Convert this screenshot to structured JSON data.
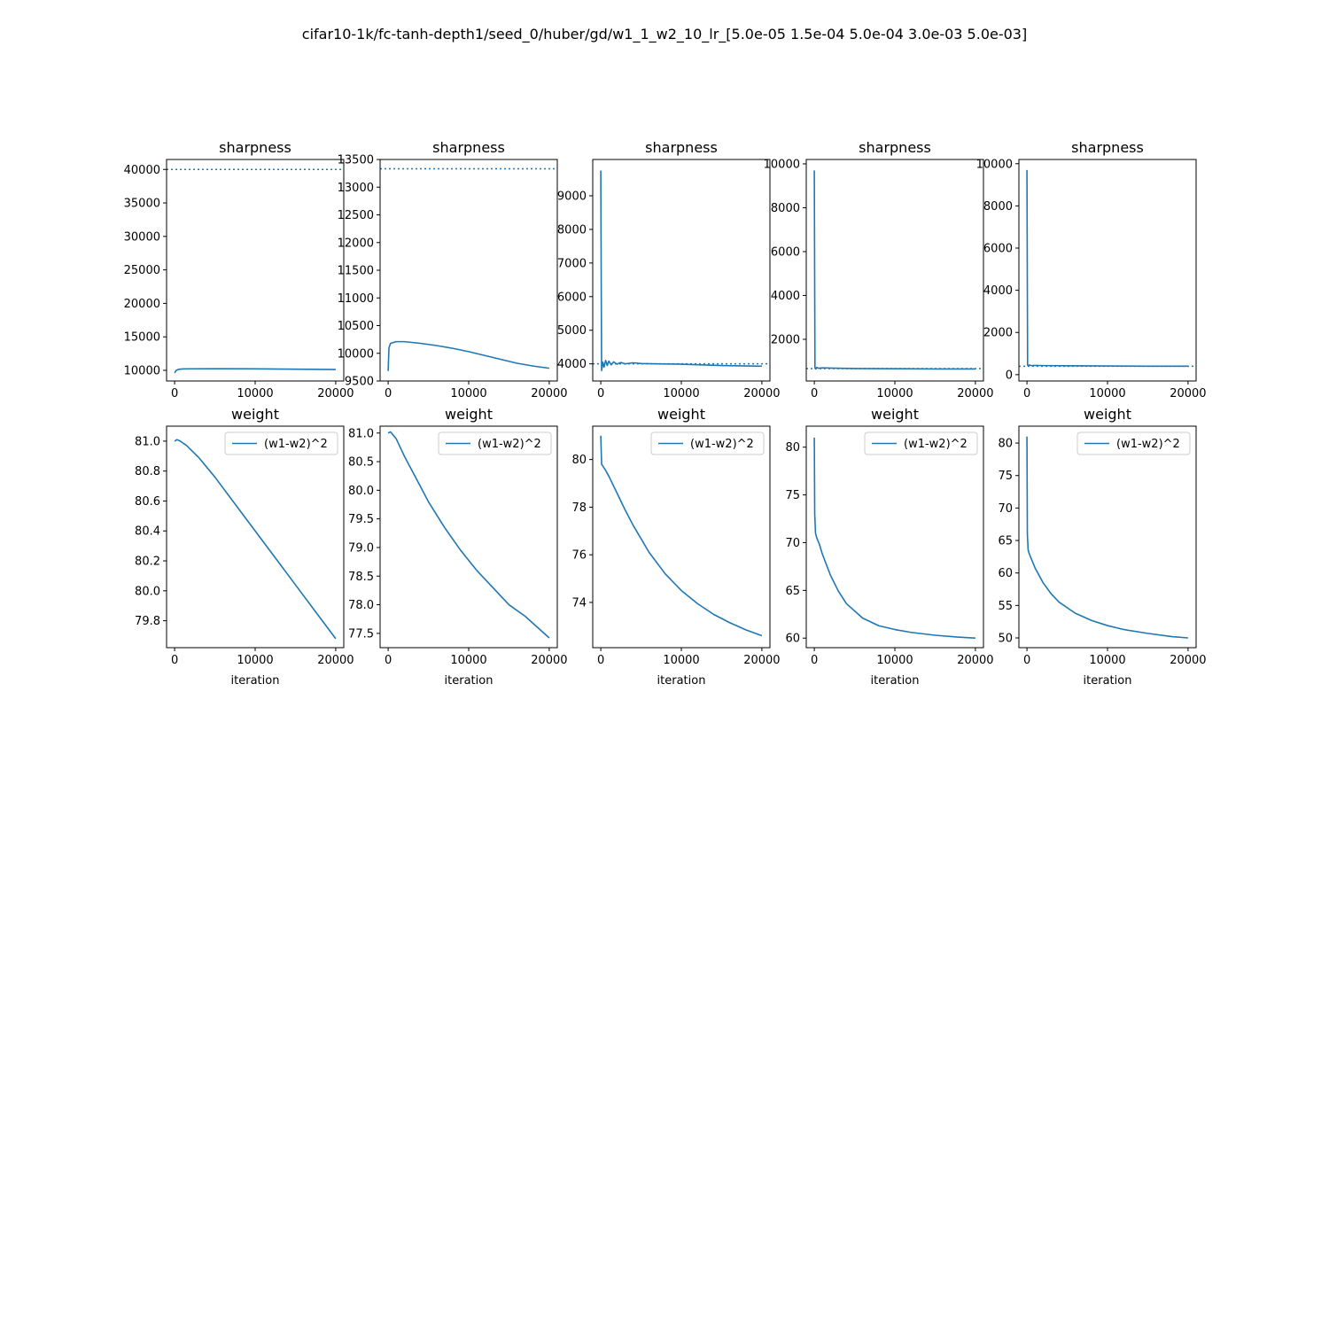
{
  "suptitle": "cifar10-1k/fc-tanh-depth1/seed_0/huber/gd/w1_1_w2_10_lr_[5.0e-05 1.5e-04 5.0e-04 3.0e-03 5.0e-03]",
  "colors": {
    "line": "#1f77b4",
    "axes": "#000000",
    "background": "#ffffff"
  },
  "chart_data": [
    {
      "type": "line",
      "title": "sharpness",
      "xlabel": "",
      "ylabel": "",
      "xlim": [
        -1000,
        21000
      ],
      "ylim": [
        8410,
        41490
      ],
      "xticks": [
        0,
        10000,
        20000
      ],
      "xtick_labels": [
        "0",
        "10000",
        "20000"
      ],
      "yticks": [
        10000,
        15000,
        20000,
        25000,
        30000,
        35000,
        40000
      ],
      "ytick_labels": [
        "10000",
        "15000",
        "20000",
        "25000",
        "30000",
        "35000",
        "40000"
      ],
      "hline": 40000,
      "grid": false,
      "series": [
        {
          "x": [
            0,
            200,
            500,
            1000,
            2000,
            5000,
            10000,
            15000,
            20000
          ],
          "y": [
            9600,
            10000,
            10150,
            10200,
            10230,
            10240,
            10220,
            10170,
            10120
          ]
        }
      ]
    },
    {
      "type": "line",
      "title": "sharpness",
      "xlabel": "",
      "ylabel": "",
      "xlim": [
        -1000,
        21000
      ],
      "ylim": [
        9500,
        13500
      ],
      "xticks": [
        0,
        10000,
        20000
      ],
      "xtick_labels": [
        "0",
        "10000",
        "20000"
      ],
      "yticks": [
        9500,
        10000,
        10500,
        11000,
        11500,
        12000,
        12500,
        13000,
        13500
      ],
      "ytick_labels": [
        "9500",
        "10000",
        "10500",
        "11000",
        "11500",
        "12000",
        "12500",
        "13000",
        "13500"
      ],
      "hline": 13333,
      "grid": false,
      "series": [
        {
          "x": [
            0,
            100,
            300,
            1000,
            2000,
            4000,
            6000,
            8000,
            10000,
            12000,
            14000,
            16000,
            18000,
            20000
          ],
          "y": [
            9680,
            10100,
            10180,
            10210,
            10210,
            10180,
            10140,
            10090,
            10030,
            9960,
            9890,
            9820,
            9770,
            9730
          ]
        }
      ]
    },
    {
      "type": "line",
      "title": "sharpness",
      "xlabel": "",
      "ylabel": "",
      "xlim": [
        -1000,
        21000
      ],
      "ylim": [
        3490,
        10080
      ],
      "xticks": [
        0,
        10000,
        20000
      ],
      "xtick_labels": [
        "0",
        "10000",
        "20000"
      ],
      "yticks": [
        4000,
        5000,
        6000,
        7000,
        8000,
        9000
      ],
      "ytick_labels": [
        "4000",
        "5000",
        "6000",
        "7000",
        "8000",
        "9000"
      ],
      "hline": 4000,
      "grid": false,
      "series": [
        {
          "x": [
            0,
            100,
            250,
            400,
            600,
            800,
            1000,
            1300,
            1600,
            2000,
            2500,
            3000,
            4000,
            5000,
            7000,
            10000,
            15000,
            20000
          ],
          "y": [
            9750,
            3800,
            4050,
            3900,
            4100,
            3950,
            4080,
            3970,
            4060,
            3990,
            4040,
            4000,
            4030,
            4010,
            4000,
            3990,
            3950,
            3930
          ]
        }
      ]
    },
    {
      "type": "line",
      "title": "sharpness",
      "xlabel": "",
      "ylabel": "",
      "xlim": [
        -1000,
        21000
      ],
      "ylim": [
        100,
        10200
      ],
      "xticks": [
        0,
        10000,
        20000
      ],
      "xtick_labels": [
        "0",
        "10000",
        "20000"
      ],
      "yticks": [
        2000,
        4000,
        6000,
        8000,
        10000
      ],
      "ytick_labels": [
        "2000",
        "4000",
        "6000",
        "8000",
        "10000"
      ],
      "hline": 667,
      "grid": false,
      "series": [
        {
          "x": [
            0,
            80,
            150,
            300,
            500,
            1000,
            2000,
            5000,
            10000,
            15000,
            20000
          ],
          "y": [
            9700,
            700,
            650,
            720,
            680,
            700,
            690,
            670,
            660,
            650,
            650
          ]
        }
      ]
    },
    {
      "type": "line",
      "title": "sharpness",
      "xlabel": "",
      "ylabel": "",
      "xlim": [
        -1000,
        21000
      ],
      "ylim": [
        -300,
        10200
      ],
      "xticks": [
        0,
        10000,
        20000
      ],
      "xtick_labels": [
        "0",
        "10000",
        "20000"
      ],
      "yticks": [
        0,
        2000,
        4000,
        6000,
        8000,
        10000
      ],
      "ytick_labels": [
        "0",
        "2000",
        "4000",
        "6000",
        "8000",
        "10000"
      ],
      "hline": 400,
      "grid": false,
      "series": [
        {
          "x": [
            0,
            80,
            150,
            300,
            500,
            1000,
            2000,
            5000,
            10000,
            15000,
            20000
          ],
          "y": [
            9700,
            450,
            420,
            460,
            430,
            440,
            430,
            420,
            410,
            400,
            400
          ]
        }
      ]
    },
    {
      "type": "line",
      "title": "weight",
      "xlabel": "iteration",
      "ylabel": "",
      "xlim": [
        -1000,
        21000
      ],
      "ylim": [
        79.62,
        81.1
      ],
      "xticks": [
        0,
        10000,
        20000
      ],
      "xtick_labels": [
        "0",
        "10000",
        "20000"
      ],
      "yticks": [
        79.8,
        80.0,
        80.2,
        80.4,
        80.6,
        80.8,
        81.0
      ],
      "ytick_labels": [
        "79.8",
        "80.0",
        "80.2",
        "80.4",
        "80.6",
        "80.8",
        "81.0"
      ],
      "legend": [
        "(w1-w2)^2"
      ],
      "legend_loc": "upper right",
      "grid": false,
      "series": [
        {
          "name": "(w1-w2)^2",
          "x": [
            0,
            300,
            700,
            1500,
            3000,
            5000,
            7500,
            10000,
            12500,
            15000,
            17500,
            20000
          ],
          "y": [
            81.0,
            81.01,
            81.0,
            80.97,
            80.89,
            80.76,
            80.58,
            80.4,
            80.22,
            80.04,
            79.86,
            79.68
          ]
        }
      ]
    },
    {
      "type": "line",
      "title": "weight",
      "xlabel": "iteration",
      "ylabel": "",
      "xlim": [
        -1000,
        21000
      ],
      "ylim": [
        77.25,
        81.12
      ],
      "xticks": [
        0,
        10000,
        20000
      ],
      "xtick_labels": [
        "0",
        "10000",
        "20000"
      ],
      "yticks": [
        77.5,
        78.0,
        78.5,
        79.0,
        79.5,
        80.0,
        80.5,
        81.0
      ],
      "ytick_labels": [
        "77.5",
        "78.0",
        "78.5",
        "79.0",
        "79.5",
        "80.0",
        "80.5",
        "81.0"
      ],
      "legend": [
        "(w1-w2)^2"
      ],
      "legend_loc": "upper right",
      "grid": false,
      "series": [
        {
          "name": "(w1-w2)^2",
          "x": [
            0,
            300,
            1000,
            2000,
            3500,
            5000,
            7000,
            9000,
            11000,
            13000,
            15000,
            17000,
            20000
          ],
          "y": [
            81.0,
            81.02,
            80.9,
            80.6,
            80.2,
            79.8,
            79.35,
            78.95,
            78.6,
            78.3,
            78.0,
            77.8,
            77.42
          ]
        }
      ]
    },
    {
      "type": "line",
      "title": "weight",
      "xlabel": "iteration",
      "ylabel": "",
      "xlim": [
        -1000,
        21000
      ],
      "ylim": [
        72.1,
        81.4
      ],
      "xticks": [
        0,
        10000,
        20000
      ],
      "xtick_labels": [
        "0",
        "10000",
        "20000"
      ],
      "yticks": [
        74,
        76,
        78,
        80
      ],
      "ytick_labels": [
        "74",
        "76",
        "78",
        "80"
      ],
      "legend": [
        "(w1-w2)^2"
      ],
      "legend_loc": "upper right",
      "grid": false,
      "series": [
        {
          "name": "(w1-w2)^2",
          "x": [
            0,
            100,
            200,
            500,
            1000,
            2000,
            3000,
            4000,
            6000,
            8000,
            10000,
            12000,
            14000,
            16000,
            18000,
            20000
          ],
          "y": [
            81.0,
            79.8,
            79.75,
            79.6,
            79.3,
            78.6,
            77.9,
            77.25,
            76.1,
            75.2,
            74.5,
            73.95,
            73.5,
            73.15,
            72.85,
            72.6
          ]
        }
      ]
    },
    {
      "type": "line",
      "title": "weight",
      "xlabel": "iteration",
      "ylabel": "",
      "xlim": [
        -1000,
        21000
      ],
      "ylim": [
        59.0,
        82.2
      ],
      "xticks": [
        0,
        10000,
        20000
      ],
      "xtick_labels": [
        "0",
        "10000",
        "20000"
      ],
      "yticks": [
        60,
        65,
        70,
        75,
        80
      ],
      "ytick_labels": [
        "60",
        "65",
        "70",
        "75",
        "80"
      ],
      "legend": [
        "(w1-w2)^2"
      ],
      "legend_loc": "upper right",
      "grid": false,
      "series": [
        {
          "name": "(w1-w2)^2",
          "x": [
            0,
            50,
            150,
            300,
            600,
            1000,
            2000,
            3000,
            4000,
            6000,
            8000,
            10000,
            12000,
            15000,
            18000,
            20000
          ],
          "y": [
            81.0,
            73.0,
            71.0,
            70.5,
            69.9,
            68.8,
            66.6,
            64.9,
            63.6,
            62.1,
            61.3,
            60.9,
            60.6,
            60.3,
            60.1,
            60.0
          ]
        }
      ]
    },
    {
      "type": "line",
      "title": "weight",
      "xlabel": "iteration",
      "ylabel": "",
      "xlim": [
        -1000,
        21000
      ],
      "ylim": [
        48.5,
        82.6
      ],
      "xticks": [
        0,
        10000,
        20000
      ],
      "xtick_labels": [
        "0",
        "10000",
        "20000"
      ],
      "yticks": [
        50,
        55,
        60,
        65,
        70,
        75,
        80
      ],
      "ytick_labels": [
        "50",
        "55",
        "60",
        "65",
        "70",
        "75",
        "80"
      ],
      "legend": [
        "(w1-w2)^2"
      ],
      "legend_loc": "upper right",
      "grid": false,
      "series": [
        {
          "name": "(w1-w2)^2",
          "x": [
            0,
            50,
            150,
            300,
            600,
            1000,
            2000,
            3000,
            4000,
            6000,
            8000,
            10000,
            12000,
            15000,
            18000,
            20000
          ],
          "y": [
            81.0,
            66.0,
            63.5,
            62.9,
            62.0,
            60.8,
            58.5,
            56.8,
            55.5,
            53.8,
            52.7,
            51.9,
            51.3,
            50.7,
            50.2,
            50.0
          ]
        }
      ]
    }
  ]
}
